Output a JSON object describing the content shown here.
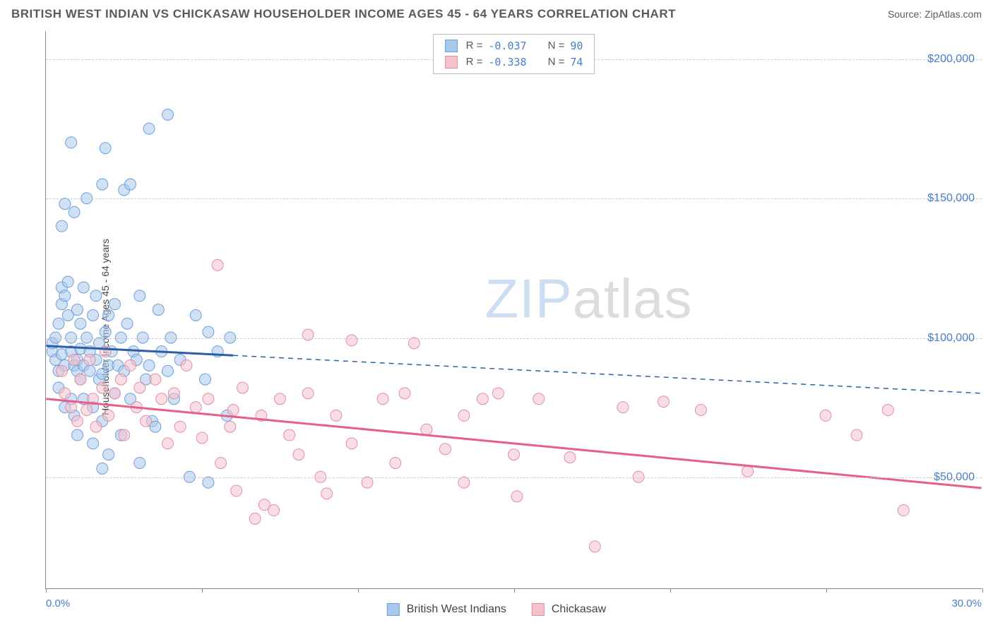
{
  "header": {
    "title": "BRITISH WEST INDIAN VS CHICKASAW HOUSEHOLDER INCOME AGES 45 - 64 YEARS CORRELATION CHART",
    "source": "Source: ZipAtlas.com"
  },
  "watermark": {
    "part1": "ZIP",
    "part2": "atlas"
  },
  "chart": {
    "type": "scatter",
    "y_axis_label": "Householder Income Ages 45 - 64 years",
    "xlim": [
      0,
      30
    ],
    "ylim": [
      10000,
      210000
    ],
    "x_ticks": [
      0,
      5,
      10,
      15,
      20,
      25,
      30
    ],
    "x_tick_labels": {
      "min": "0.0%",
      "max": "30.0%"
    },
    "y_gridlines": [
      50000,
      100000,
      150000,
      200000
    ],
    "y_tick_labels": [
      "$50,000",
      "$100,000",
      "$150,000",
      "$200,000"
    ],
    "background_color": "#ffffff",
    "grid_color": "#cccccc",
    "axis_color": "#888888",
    "tick_label_color": "#4a7ec9",
    "colors": {
      "series_a_fill": "#a9c8ec",
      "series_a_stroke": "#6f9fd8",
      "series_b_fill": "#f4c1cd",
      "series_b_stroke": "#e08fa3",
      "trend_a": "#2c5fa5",
      "trend_b": "#e75f87"
    },
    "marker_radius": 8,
    "marker_opacity": 0.55,
    "series": [
      {
        "key": "british_west_indians",
        "label": "British West Indians",
        "stats": {
          "R": "-0.037",
          "N": "90"
        },
        "trend": {
          "x1": 0,
          "y1": 97000,
          "x2": 30,
          "y2": 80000,
          "data_xmax": 6.0
        },
        "points": [
          [
            0.2,
            95000
          ],
          [
            0.2,
            98000
          ],
          [
            0.3,
            92000
          ],
          [
            0.3,
            100000
          ],
          [
            0.4,
            88000
          ],
          [
            0.4,
            105000
          ],
          [
            0.4,
            82000
          ],
          [
            0.5,
            112000
          ],
          [
            0.5,
            118000
          ],
          [
            0.5,
            94000
          ],
          [
            0.5,
            140000
          ],
          [
            0.6,
            75000
          ],
          [
            0.6,
            148000
          ],
          [
            0.6,
            90000
          ],
          [
            0.6,
            115000
          ],
          [
            0.7,
            108000
          ],
          [
            0.7,
            120000
          ],
          [
            0.8,
            78000
          ],
          [
            0.8,
            100000
          ],
          [
            0.8,
            95000
          ],
          [
            0.8,
            170000
          ],
          [
            0.9,
            90000
          ],
          [
            0.9,
            72000
          ],
          [
            0.9,
            145000
          ],
          [
            1.0,
            110000
          ],
          [
            1.0,
            88000
          ],
          [
            1.0,
            92000
          ],
          [
            1.0,
            65000
          ],
          [
            1.1,
            96000
          ],
          [
            1.1,
            105000
          ],
          [
            1.1,
            85000
          ],
          [
            1.2,
            78000
          ],
          [
            1.2,
            118000
          ],
          [
            1.2,
            90000
          ],
          [
            1.3,
            150000
          ],
          [
            1.3,
            100000
          ],
          [
            1.4,
            88000
          ],
          [
            1.4,
            95000
          ],
          [
            1.5,
            75000
          ],
          [
            1.5,
            108000
          ],
          [
            1.5,
            62000
          ],
          [
            1.6,
            92000
          ],
          [
            1.6,
            115000
          ],
          [
            1.7,
            85000
          ],
          [
            1.7,
            98000
          ],
          [
            1.8,
            70000
          ],
          [
            1.8,
            155000
          ],
          [
            1.8,
            87000
          ],
          [
            1.9,
            102000
          ],
          [
            1.9,
            168000
          ],
          [
            2.0,
            108000
          ],
          [
            2.0,
            90000
          ],
          [
            2.0,
            58000
          ],
          [
            2.1,
            95000
          ],
          [
            2.2,
            80000
          ],
          [
            2.2,
            112000
          ],
          [
            2.3,
            90000
          ],
          [
            2.4,
            65000
          ],
          [
            2.4,
            100000
          ],
          [
            2.5,
            88000
          ],
          [
            2.5,
            153000
          ],
          [
            2.6,
            105000
          ],
          [
            2.7,
            78000
          ],
          [
            2.7,
            155000
          ],
          [
            2.8,
            95000
          ],
          [
            2.9,
            92000
          ],
          [
            3.0,
            115000
          ],
          [
            3.0,
            55000
          ],
          [
            3.1,
            100000
          ],
          [
            3.2,
            85000
          ],
          [
            3.3,
            90000
          ],
          [
            3.4,
            70000
          ],
          [
            3.5,
            68000
          ],
          [
            3.6,
            110000
          ],
          [
            3.7,
            95000
          ],
          [
            3.9,
            180000
          ],
          [
            3.9,
            88000
          ],
          [
            4.0,
            100000
          ],
          [
            4.1,
            78000
          ],
          [
            4.3,
            92000
          ],
          [
            4.6,
            50000
          ],
          [
            4.8,
            108000
          ],
          [
            5.1,
            85000
          ],
          [
            5.2,
            102000
          ],
          [
            5.5,
            95000
          ],
          [
            5.8,
            72000
          ],
          [
            5.9,
            100000
          ],
          [
            5.2,
            48000
          ],
          [
            3.3,
            175000
          ],
          [
            1.8,
            53000
          ]
        ]
      },
      {
        "key": "chickasaw",
        "label": "Chickasaw",
        "stats": {
          "R": "-0.338",
          "N": "74"
        },
        "trend": {
          "x1": 0,
          "y1": 78000,
          "x2": 30,
          "y2": 46000,
          "data_xmax": 30
        },
        "points": [
          [
            0.5,
            88000
          ],
          [
            0.6,
            80000
          ],
          [
            0.8,
            75000
          ],
          [
            0.9,
            92000
          ],
          [
            1.0,
            70000
          ],
          [
            1.1,
            85000
          ],
          [
            1.3,
            74000
          ],
          [
            1.4,
            92000
          ],
          [
            1.5,
            78000
          ],
          [
            1.6,
            68000
          ],
          [
            1.8,
            82000
          ],
          [
            1.9,
            95000
          ],
          [
            2.0,
            72000
          ],
          [
            2.2,
            80000
          ],
          [
            2.4,
            85000
          ],
          [
            2.5,
            65000
          ],
          [
            2.7,
            90000
          ],
          [
            2.9,
            75000
          ],
          [
            3.0,
            82000
          ],
          [
            3.2,
            70000
          ],
          [
            3.5,
            85000
          ],
          [
            3.7,
            78000
          ],
          [
            3.9,
            62000
          ],
          [
            4.1,
            80000
          ],
          [
            4.3,
            68000
          ],
          [
            4.5,
            90000
          ],
          [
            4.8,
            75000
          ],
          [
            5.0,
            64000
          ],
          [
            5.2,
            78000
          ],
          [
            5.5,
            126000
          ],
          [
            5.6,
            55000
          ],
          [
            5.9,
            68000
          ],
          [
            6.0,
            74000
          ],
          [
            6.1,
            45000
          ],
          [
            6.3,
            82000
          ],
          [
            6.7,
            35000
          ],
          [
            6.9,
            72000
          ],
          [
            7.0,
            40000
          ],
          [
            7.3,
            38000
          ],
          [
            7.5,
            78000
          ],
          [
            7.8,
            65000
          ],
          [
            8.1,
            58000
          ],
          [
            8.4,
            80000
          ],
          [
            8.4,
            101000
          ],
          [
            8.8,
            50000
          ],
          [
            9.0,
            44000
          ],
          [
            9.3,
            72000
          ],
          [
            9.8,
            99000
          ],
          [
            9.8,
            62000
          ],
          [
            10.3,
            48000
          ],
          [
            10.8,
            78000
          ],
          [
            11.2,
            55000
          ],
          [
            11.5,
            80000
          ],
          [
            11.8,
            98000
          ],
          [
            12.2,
            67000
          ],
          [
            12.8,
            60000
          ],
          [
            13.4,
            72000
          ],
          [
            13.4,
            48000
          ],
          [
            14.0,
            78000
          ],
          [
            14.5,
            80000
          ],
          [
            15.0,
            58000
          ],
          [
            15.1,
            43000
          ],
          [
            15.8,
            78000
          ],
          [
            16.8,
            57000
          ],
          [
            17.6,
            25000
          ],
          [
            18.5,
            75000
          ],
          [
            19.0,
            50000
          ],
          [
            19.8,
            77000
          ],
          [
            21.0,
            74000
          ],
          [
            22.5,
            52000
          ],
          [
            25.0,
            72000
          ],
          [
            26.0,
            65000
          ],
          [
            27.0,
            74000
          ],
          [
            27.5,
            38000
          ]
        ]
      }
    ]
  }
}
